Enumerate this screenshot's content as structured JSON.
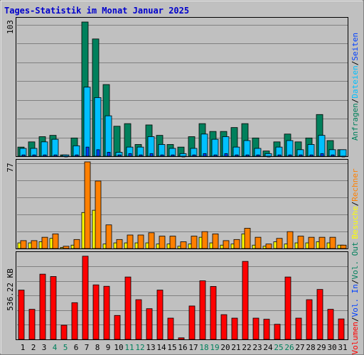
{
  "title": "Tages-Statistik im Monat Januar 2025",
  "colors": {
    "background": "#c0c0c0",
    "title": "#0000cc",
    "grid": "#808080",
    "hits": "#00805c",
    "files": "#00c0ff",
    "pages": "#0040ff",
    "visits": "#ffff00",
    "sites": "#ff8000",
    "volume": "#ff0000",
    "weekend_label": "#00805c",
    "weekday_label": "#000000"
  },
  "chart_data": [
    {
      "type": "bar",
      "panel": "top",
      "categories": [
        "1",
        "2",
        "3",
        "4",
        "5",
        "6",
        "7",
        "8",
        "9",
        "10",
        "11",
        "12",
        "13",
        "14",
        "15",
        "16",
        "17",
        "18",
        "19",
        "20",
        "21",
        "22",
        "23",
        "24",
        "25",
        "26",
        "27",
        "28",
        "29",
        "30",
        "31"
      ],
      "weekend_days": [
        "4",
        "5",
        "11",
        "12",
        "18",
        "19",
        "25",
        "26"
      ],
      "ymax_label": "103",
      "ylim": [
        0,
        103
      ],
      "legend": [
        "Anfragen",
        "Dateien",
        "Seiten"
      ],
      "legend_separator": "/",
      "series": [
        {
          "name": "Anfragen",
          "color": "#00805c",
          "values": [
            7,
            11,
            15,
            16,
            1,
            14,
            103,
            90,
            55,
            23,
            25,
            9,
            24,
            16,
            9,
            7,
            15,
            25,
            19,
            19,
            22,
            25,
            14,
            4,
            11,
            17,
            11,
            14,
            32,
            12,
            5
          ]
        },
        {
          "name": "Dateien",
          "color": "#00c0ff",
          "values": [
            6,
            6,
            11,
            13,
            1,
            8,
            53,
            45,
            31,
            3,
            7,
            7,
            15,
            9,
            6,
            2,
            6,
            17,
            13,
            15,
            7,
            12,
            6,
            2,
            7,
            12,
            5,
            9,
            16,
            5,
            5
          ]
        },
        {
          "name": "Seiten",
          "color": "#0040ff",
          "values": [
            1,
            1,
            1,
            1,
            0,
            1,
            7,
            5,
            3,
            1,
            2,
            1,
            2,
            1,
            1,
            0,
            1,
            2,
            1,
            2,
            1,
            1,
            1,
            0,
            1,
            1,
            1,
            1,
            2,
            1,
            0
          ]
        }
      ]
    },
    {
      "type": "bar",
      "panel": "middle",
      "categories": [
        "1",
        "2",
        "3",
        "4",
        "5",
        "6",
        "7",
        "8",
        "9",
        "10",
        "11",
        "12",
        "13",
        "14",
        "15",
        "16",
        "17",
        "18",
        "19",
        "20",
        "21",
        "22",
        "23",
        "24",
        "25",
        "26",
        "27",
        "28",
        "29",
        "30",
        "31"
      ],
      "ymax_label": "77",
      "ylim": [
        0,
        77
      ],
      "legend": [
        "Besuche",
        "Rechner"
      ],
      "legend_separator": "/",
      "series": [
        {
          "name": "Besuche",
          "color": "#ffff00",
          "values": [
            5,
            5,
            6,
            9,
            1,
            3,
            32,
            34,
            4,
            5,
            5,
            5,
            5,
            4,
            4,
            2,
            4,
            10,
            5,
            3,
            4,
            13,
            3,
            2,
            6,
            4,
            5,
            5,
            6,
            5,
            3
          ]
        },
        {
          "name": "Rechner",
          "color": "#ff8000",
          "values": [
            7,
            7,
            10,
            13,
            2,
            8,
            77,
            60,
            21,
            8,
            12,
            12,
            14,
            11,
            11,
            6,
            11,
            15,
            13,
            7,
            8,
            18,
            10,
            4,
            9,
            15,
            11,
            10,
            10,
            10,
            3
          ]
        }
      ]
    },
    {
      "type": "bar",
      "panel": "bottom",
      "categories": [
        "1",
        "2",
        "3",
        "4",
        "5",
        "6",
        "7",
        "8",
        "9",
        "10",
        "11",
        "12",
        "13",
        "14",
        "15",
        "16",
        "17",
        "18",
        "19",
        "20",
        "21",
        "22",
        "23",
        "24",
        "25",
        "26",
        "27",
        "28",
        "29",
        "30",
        "31"
      ],
      "ymax_label": "536.22 KB",
      "ylim": [
        0,
        536.22
      ],
      "legend": [
        "Volumen",
        "Vol. In",
        "Vol. Out"
      ],
      "legend_separator": "/",
      "series": [
        {
          "name": "Volumen",
          "color": "#ff0000",
          "values": [
            313,
            191,
            414,
            399,
            90,
            233,
            528,
            346,
            337,
            152,
            396,
            252,
            195,
            313,
            135,
            10,
            212,
            372,
            336,
            157,
            135,
            495,
            135,
            128,
            96,
            396,
            135,
            252,
            317,
            191,
            130
          ]
        }
      ]
    }
  ]
}
